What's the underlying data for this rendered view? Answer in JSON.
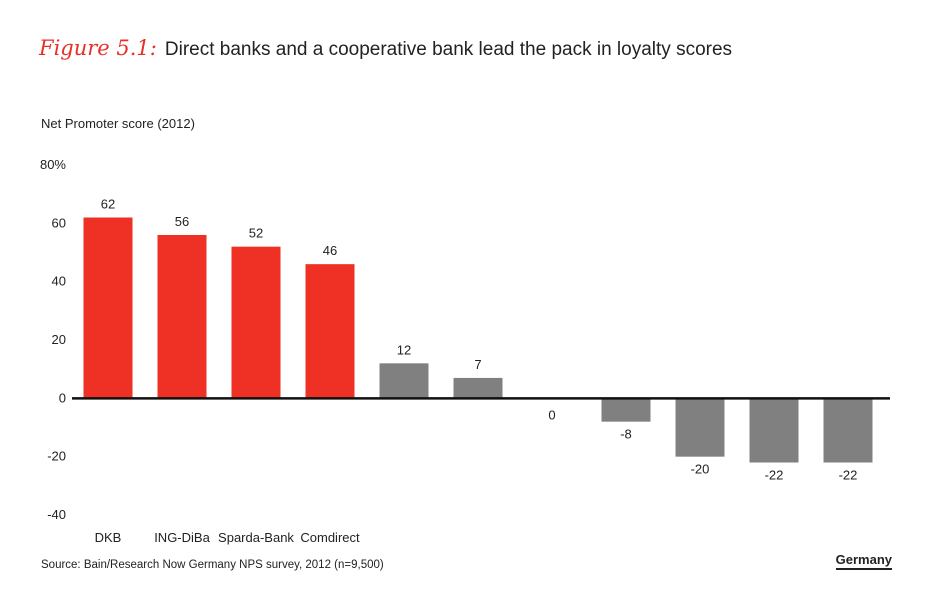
{
  "header": {
    "figure_label": "Figure 5.1:",
    "title": "Direct banks and a cooperative bank lead the pack in loyalty scores"
  },
  "footer": {
    "source": "Source: Bain/Research Now Germany NPS survey, 2012 (n=9,500)",
    "region": "Germany"
  },
  "colors": {
    "highlight": "#ee3124",
    "neutral": "#808080",
    "axis": "#111111",
    "accent_title": "#e8302a"
  },
  "chart_data": {
    "type": "bar",
    "title": "Direct banks and a cooperative bank lead the pack in loyalty scores",
    "ylabel": "Net Promoter score (2012)",
    "xlabel": "",
    "ylim": [
      -40,
      80
    ],
    "yticks": [
      80,
      60,
      40,
      20,
      0,
      -20,
      -40
    ],
    "ytick_labels": [
      "80%",
      "60",
      "40",
      "20",
      "0",
      "-20",
      "-40"
    ],
    "grid": false,
    "categories": [
      "DKB",
      "ING-DiBa",
      "Sparda-Bank",
      "Comdirect",
      "",
      "",
      "",
      "",
      "",
      "",
      ""
    ],
    "values": [
      62,
      56,
      52,
      46,
      12,
      7,
      0,
      -8,
      -20,
      -22,
      -22
    ],
    "highlighted": [
      true,
      true,
      true,
      true,
      false,
      false,
      false,
      false,
      false,
      false,
      false
    ],
    "data_labels": [
      "62",
      "56",
      "52",
      "46",
      "12",
      "7",
      "0",
      "-8",
      "-20",
      "-22",
      "-22"
    ]
  }
}
